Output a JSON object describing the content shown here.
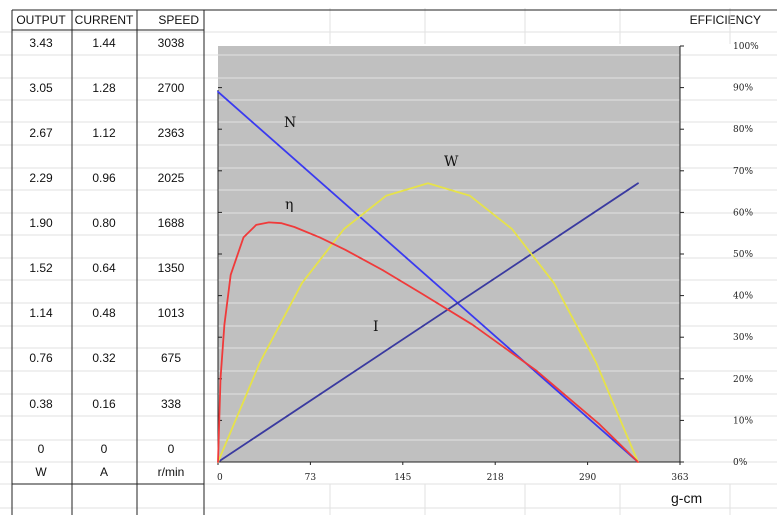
{
  "table": {
    "headers": [
      "OUTPUT",
      "CURRENT",
      "SPEED"
    ],
    "units": [
      "W",
      "A",
      "r/min"
    ],
    "rows": [
      [
        "3.43",
        "1.44",
        "3038"
      ],
      [
        "3.05",
        "1.28",
        "2700"
      ],
      [
        "2.67",
        "1.12",
        "2363"
      ],
      [
        "2.29",
        "0.96",
        "2025"
      ],
      [
        "1.90",
        "0.80",
        "1688"
      ],
      [
        "1.52",
        "0.64",
        "1350"
      ],
      [
        "1.14",
        "0.48",
        "1013"
      ],
      [
        "0.76",
        "0.32",
        "675"
      ],
      [
        "0.38",
        "0.16",
        "338"
      ],
      [
        "0",
        "0",
        "0"
      ]
    ]
  },
  "efficiency_header": "EFFICIENCY",
  "chart_data": {
    "type": "line",
    "xlabel": "g-cm",
    "xlim": [
      0,
      363
    ],
    "x_ticks": [
      "0",
      "73",
      "145",
      "218",
      "290",
      "363"
    ],
    "right_axis_ticks": [
      "0%",
      "10%",
      "20%",
      "30%",
      "40%",
      "50%",
      "60%",
      "70%",
      "80%",
      "90%",
      "100%"
    ],
    "right_lim": [
      0,
      100
    ],
    "grid": false,
    "background": "#c0c0c0",
    "curve_labels": [
      "N",
      "η",
      "W",
      "I"
    ],
    "series": [
      {
        "label": "N",
        "color": "#3a3af0",
        "x": [
          0,
          330
        ],
        "y": [
          89,
          0
        ]
      },
      {
        "label": "I",
        "color": "#3a3aa0",
        "x": [
          0,
          330
        ],
        "y": [
          0,
          67
        ]
      },
      {
        "label": "W",
        "color": "#e6e24a",
        "x": [
          0,
          33,
          66,
          99,
          132,
          165,
          198,
          231,
          264,
          297,
          330
        ],
        "y": [
          0,
          24,
          43,
          56,
          64,
          67,
          64,
          56,
          43,
          24,
          0
        ]
      },
      {
        "label": "η",
        "color": "#f03a3a",
        "x": [
          0,
          2,
          5,
          10,
          20,
          30,
          40,
          50,
          60,
          80,
          100,
          130,
          160,
          200,
          250,
          300,
          330
        ],
        "y": [
          0,
          20,
          33,
          45,
          54,
          57,
          57.6,
          57.4,
          56.5,
          54,
          51,
          46,
          40.5,
          33,
          22,
          9,
          0
        ]
      }
    ]
  }
}
